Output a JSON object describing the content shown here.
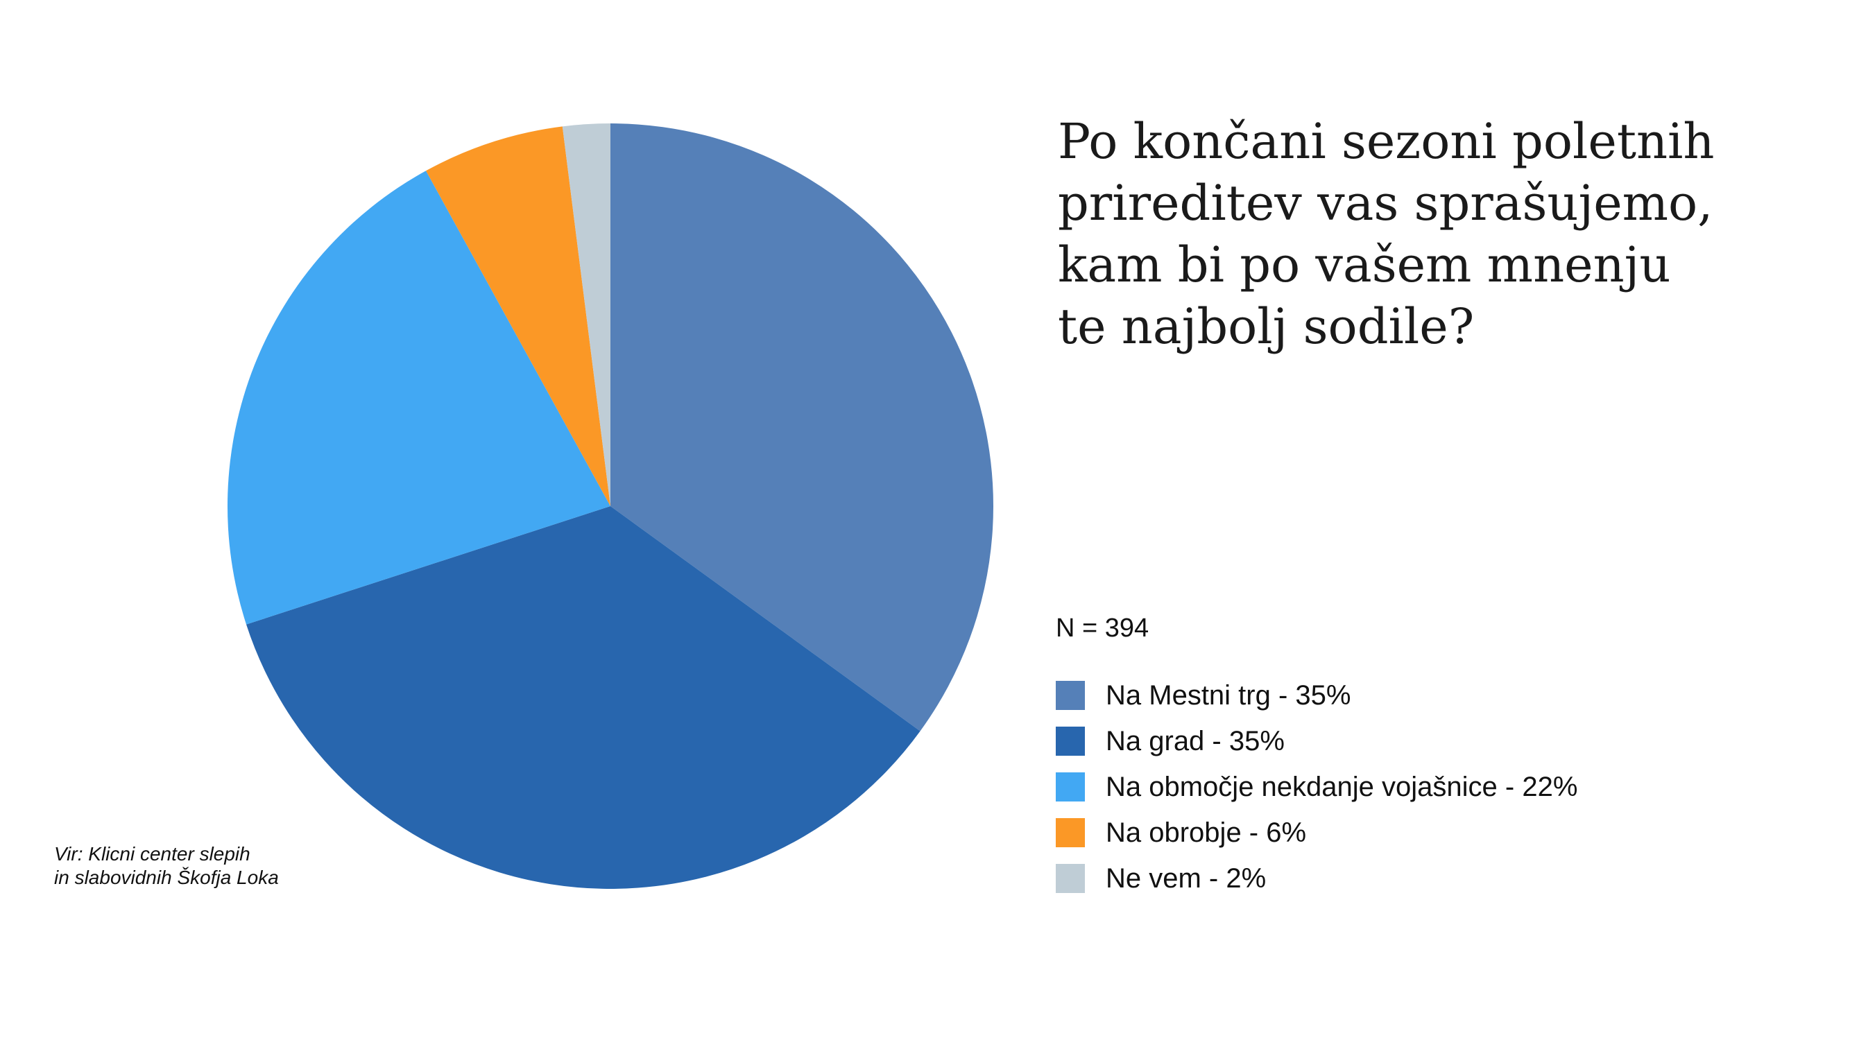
{
  "title_lines": [
    "Po končani sezoni poletnih",
    "prireditev vas sprašujemo,",
    "kam bi po vašem mnenju",
    "te najbolj sodile?"
  ],
  "sample_size": "N = 394",
  "source_lines": [
    "Vir: Klicni center slepih",
    "in slabovidnih Škofja Loka"
  ],
  "legend": [
    {
      "label": "Na Mestni trg - 35%",
      "color": "#5580b8"
    },
    {
      "label": "Na grad - 35%",
      "color": "#2866ae"
    },
    {
      "label": "Na območje nekdanje vojašnice - 22%",
      "color": "#42a8f3"
    },
    {
      "label": "Na obrobje - 6%",
      "color": "#fb9826"
    },
    {
      "label": "Ne vem - 2%",
      "color": "#bfcdd6"
    }
  ],
  "chart_data": {
    "type": "pie",
    "categories": [
      "Na Mestni trg",
      "Na grad",
      "Na območje nekdanje vojašnice",
      "Na obrobje",
      "Ne vem"
    ],
    "values": [
      35,
      35,
      22,
      6,
      2
    ],
    "colors": [
      "#5580b8",
      "#2866ae",
      "#42a8f3",
      "#fb9826",
      "#bfcdd6"
    ],
    "start": "top",
    "direction": "clockwise",
    "legend_position": "right"
  }
}
